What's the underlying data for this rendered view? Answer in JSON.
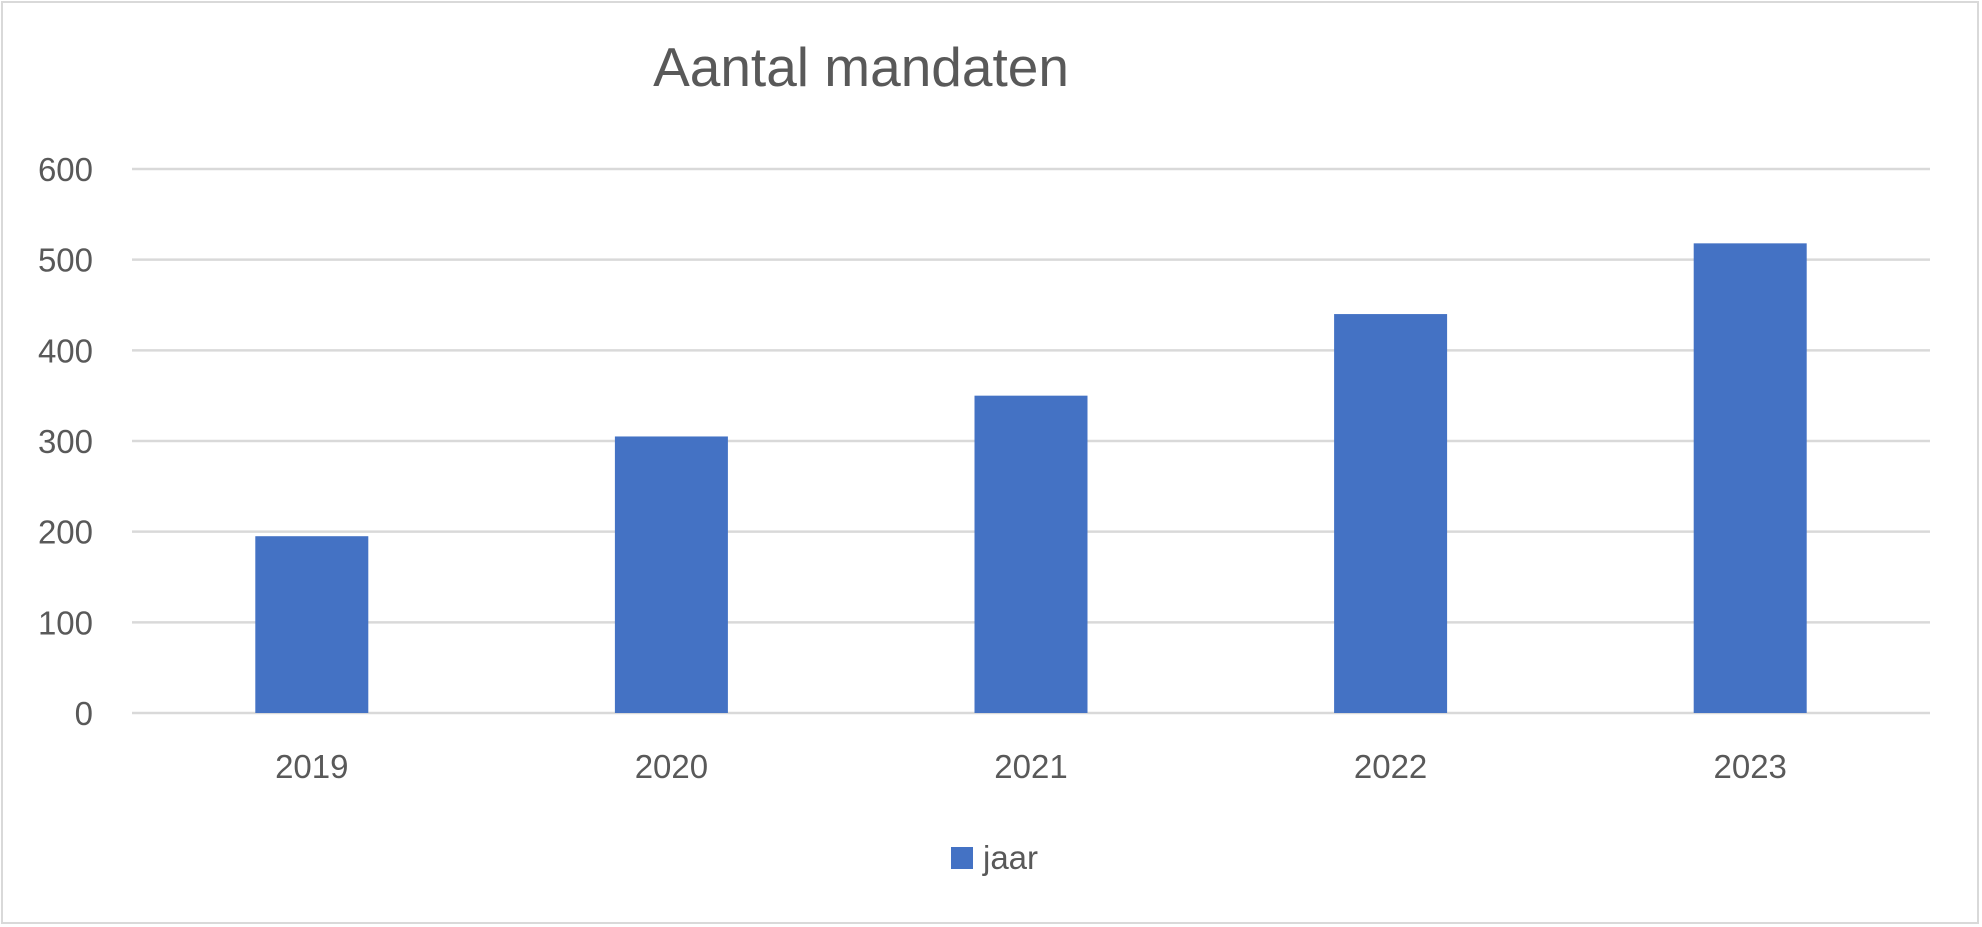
{
  "chart_data": {
    "type": "bar",
    "title": "Aantal mandaten",
    "xlabel": "",
    "ylabel": "",
    "categories": [
      "2019",
      "2020",
      "2021",
      "2022",
      "2023"
    ],
    "series": [
      {
        "name": "jaar",
        "values": [
          195,
          305,
          350,
          440,
          518
        ],
        "color": "#4472c4"
      }
    ],
    "ylim": [
      0,
      600
    ],
    "yticks": [
      "0",
      "100",
      "200",
      "300",
      "400",
      "500",
      "600"
    ],
    "grid": true,
    "legend_position": "bottom",
    "gridline_color": "#d9d9d9",
    "text_color": "#595959"
  }
}
